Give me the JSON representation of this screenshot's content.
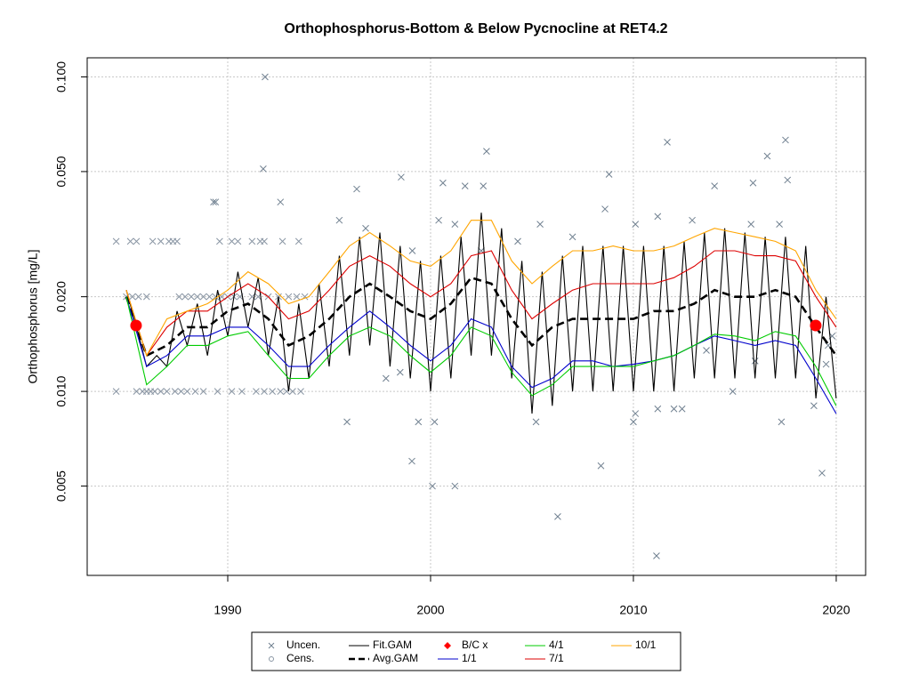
{
  "chart_data": {
    "type": "line",
    "title": "Orthophosphorus-Bottom & Below Pycnocline at RET4.2",
    "y_label": "Orthophosphorus [mg/L]",
    "xlim": [
      1983.07,
      2021.45
    ],
    "ylim": [
      0.0026,
      0.115
    ],
    "log_y": true,
    "grid": true,
    "legend": "bottom",
    "xticks": [
      1990,
      2000,
      2010,
      2020
    ],
    "yticks": [
      0.005,
      {
        "value": 0.01,
        "label": "0.010"
      },
      {
        "value": 0.02,
        "label": "0.020"
      },
      {
        "value": 0.05,
        "label": "0.050"
      },
      {
        "value": 0.1,
        "label": "0.100"
      }
    ],
    "series": [
      {
        "name": "Uncen.",
        "color": "#708090",
        "style": "x",
        "x": [
          1991.84,
          1991.75,
          1989.3,
          1989.4,
          1992.6,
          1996.36,
          1998.55,
          2000.61,
          2001.7,
          2002.76,
          2002.6,
          2008.8,
          2011.67,
          2014.0,
          2015.9,
          2017.5,
          2016.6,
          2017.6,
          1995.88,
          1999.08,
          1999.4,
          2000.09,
          2001.2,
          2000.2,
          2005.2,
          2006.27,
          2008.4,
          2010.0,
          2010.1,
          2011.14,
          2011.2,
          2012.0,
          2012.4,
          2017.3,
          2019.3,
          2018.9,
          2019.5,
          1995.5,
          1996.8,
          1999.1,
          2000.4,
          2001.2,
          2002.5,
          2004.3,
          2005.4,
          2007.0,
          2008.6,
          2010.1,
          2011.2,
          2012.9,
          2015.8,
          2017.2,
          1997.8,
          1998.5,
          2013.6,
          2016.0,
          2014.9,
          2019.8,
          2019.6
        ],
        "values": [
          0.1,
          0.051,
          0.04,
          0.04,
          0.04,
          0.044,
          0.048,
          0.046,
          0.045,
          0.058,
          0.045,
          0.049,
          0.062,
          0.045,
          0.046,
          0.063,
          0.056,
          0.047,
          0.008,
          0.006,
          0.008,
          0.005,
          0.005,
          0.008,
          0.008,
          0.004,
          0.0058,
          0.008,
          0.0085,
          0.003,
          0.0088,
          0.0088,
          0.0088,
          0.008,
          0.0055,
          0.009,
          0.0122,
          0.035,
          0.033,
          0.028,
          0.035,
          0.034,
          0.028,
          0.03,
          0.034,
          0.031,
          0.038,
          0.034,
          0.036,
          0.035,
          0.034,
          0.034,
          0.011,
          0.0115,
          0.0135,
          0.0125,
          0.01,
          0.015,
          0.014
        ]
      },
      {
        "name": "Cens.",
        "color": "#8a96a4",
        "style": "circle",
        "x": [
          1984.5,
          1985.2,
          1985.5,
          1986.3,
          1986.7,
          1987.1,
          1987.3,
          1987.5,
          1989.6,
          1990.2,
          1990.5,
          1991.2,
          1991.6,
          1991.8,
          1992.7,
          1993.5,
          1985.0,
          1985.3,
          1985.6,
          1986.0,
          1987.6,
          1987.9,
          1988.2,
          1988.5,
          1988.8,
          1989.1,
          1989.4,
          1989.7,
          1990.0,
          1990.3,
          1990.6,
          1991.2,
          1991.5,
          1992.0,
          1992.5,
          1993.0,
          1993.4,
          1993.8,
          1984.5,
          1985.5,
          1985.8,
          1986.0,
          1986.2,
          1986.4,
          1986.7,
          1987.0,
          1987.4,
          1987.7,
          1988.0,
          1988.4,
          1988.8,
          1989.5,
          1990.2,
          1990.7,
          1991.4,
          1991.8,
          1992.2,
          1992.6,
          1992.9,
          1993.2,
          1993.6
        ],
        "values": [
          0.03,
          0.03,
          0.03,
          0.03,
          0.03,
          0.03,
          0.03,
          0.03,
          0.03,
          0.03,
          0.03,
          0.03,
          0.03,
          0.03,
          0.03,
          0.03,
          0.02,
          0.02,
          0.02,
          0.02,
          0.02,
          0.02,
          0.02,
          0.02,
          0.02,
          0.02,
          0.02,
          0.02,
          0.02,
          0.02,
          0.02,
          0.02,
          0.02,
          0.02,
          0.02,
          0.02,
          0.02,
          0.02,
          0.01,
          0.01,
          0.01,
          0.01,
          0.01,
          0.01,
          0.01,
          0.01,
          0.01,
          0.01,
          0.01,
          0.01,
          0.01,
          0.01,
          0.01,
          0.01,
          0.01,
          0.01,
          0.01,
          0.01,
          0.01,
          0.01,
          0.01
        ]
      },
      {
        "name": "Fit.GAM",
        "color": "#000000",
        "style": "solid",
        "x": [
          1985,
          1985.5,
          1986,
          1986.5,
          1987,
          1987.5,
          1988,
          1988.5,
          1989,
          1989.5,
          1990,
          1990.5,
          1991,
          1991.5,
          1992,
          1992.5,
          1993,
          1993.5,
          1994,
          1994.5,
          1995,
          1995.5,
          1996,
          1996.5,
          1997,
          1997.5,
          1998,
          1998.5,
          1999,
          1999.5,
          2000,
          2000.5,
          2001,
          2001.5,
          2002,
          2002.5,
          2003,
          2003.5,
          2004,
          2004.5,
          2005,
          2005.5,
          2006,
          2006.5,
          2007,
          2007.5,
          2008,
          2008.5,
          2009,
          2009.5,
          2010,
          2010.5,
          2011,
          2011.5,
          2012,
          2012.5,
          2013,
          2013.5,
          2014,
          2014.5,
          2015,
          2015.5,
          2016,
          2016.5,
          2017,
          2017.5,
          2018,
          2018.5,
          2019,
          2019.5,
          2020
        ],
        "values": [
          0.021,
          0.016,
          0.012,
          0.013,
          0.012,
          0.018,
          0.014,
          0.019,
          0.013,
          0.021,
          0.015,
          0.024,
          0.016,
          0.023,
          0.013,
          0.02,
          0.01,
          0.019,
          0.011,
          0.022,
          0.012,
          0.027,
          0.013,
          0.031,
          0.014,
          0.032,
          0.012,
          0.029,
          0.011,
          0.026,
          0.01,
          0.027,
          0.011,
          0.031,
          0.013,
          0.037,
          0.013,
          0.033,
          0.011,
          0.026,
          0.0085,
          0.024,
          0.009,
          0.027,
          0.01,
          0.029,
          0.01,
          0.029,
          0.01,
          0.029,
          0.01,
          0.029,
          0.01,
          0.029,
          0.01,
          0.03,
          0.011,
          0.032,
          0.011,
          0.033,
          0.011,
          0.032,
          0.011,
          0.031,
          0.011,
          0.031,
          0.011,
          0.029,
          0.0095,
          0.02,
          0.0095
        ]
      },
      {
        "name": "Avg.GAM",
        "color": "#000000",
        "style": "dashed",
        "x": [
          1985,
          1986,
          1987,
          1988,
          1989,
          1990,
          1991,
          1992,
          1993,
          1994,
          1995,
          1996,
          1997,
          1998,
          1999,
          2000,
          2001,
          2002,
          2003,
          2004,
          2005,
          2006,
          2007,
          2008,
          2009,
          2010,
          2011,
          2012,
          2013,
          2014,
          2015,
          2016,
          2017,
          2018,
          2019,
          2020
        ],
        "values": [
          0.02,
          0.013,
          0.014,
          0.016,
          0.016,
          0.018,
          0.019,
          0.017,
          0.014,
          0.015,
          0.017,
          0.02,
          0.022,
          0.02,
          0.018,
          0.017,
          0.019,
          0.023,
          0.022,
          0.017,
          0.014,
          0.016,
          0.017,
          0.017,
          0.017,
          0.017,
          0.018,
          0.018,
          0.019,
          0.021,
          0.02,
          0.02,
          0.021,
          0.02,
          0.016,
          0.013
        ]
      },
      {
        "name": "B/C x",
        "color": "#ff0000",
        "style": "dot",
        "x": [
          1985.48,
          2018.99
        ],
        "values": [
          0.0162,
          0.0162
        ]
      },
      {
        "name": "1/1",
        "color": "#0000cc",
        "style": "solid",
        "x": [
          1985,
          1986,
          1987,
          1988,
          1989,
          1990,
          1991,
          1992,
          1993,
          1994,
          1995,
          1996,
          1997,
          1998,
          1999,
          2000,
          2001,
          2002,
          2003,
          2004,
          2005,
          2006,
          2007,
          2008,
          2009,
          2010,
          2011,
          2012,
          2013,
          2014,
          2015,
          2016,
          2017,
          2018,
          2019,
          2020
        ],
        "values": [
          0.02,
          0.012,
          0.013,
          0.015,
          0.015,
          0.016,
          0.016,
          0.014,
          0.012,
          0.012,
          0.014,
          0.016,
          0.018,
          0.016,
          0.014,
          0.0125,
          0.014,
          0.017,
          0.016,
          0.012,
          0.0103,
          0.011,
          0.0125,
          0.0125,
          0.012,
          0.0122,
          0.0125,
          0.013,
          0.014,
          0.015,
          0.0145,
          0.014,
          0.0145,
          0.014,
          0.011,
          0.0085
        ]
      },
      {
        "name": "4/1",
        "color": "#00cc00",
        "style": "solid",
        "x": [
          1985,
          1986,
          1987,
          1988,
          1989,
          1990,
          1991,
          1992,
          1993,
          1994,
          1995,
          1996,
          1997,
          1998,
          1999,
          2000,
          2001,
          2002,
          2003,
          2004,
          2005,
          2006,
          2007,
          2008,
          2009,
          2010,
          2011,
          2012,
          2013,
          2014,
          2015,
          2016,
          2017,
          2018,
          2019,
          2020
        ],
        "values": [
          0.02,
          0.0105,
          0.012,
          0.014,
          0.014,
          0.015,
          0.0155,
          0.013,
          0.011,
          0.011,
          0.013,
          0.015,
          0.016,
          0.015,
          0.013,
          0.0115,
          0.013,
          0.016,
          0.015,
          0.0115,
          0.0097,
          0.0105,
          0.012,
          0.012,
          0.012,
          0.012,
          0.0125,
          0.013,
          0.014,
          0.0152,
          0.015,
          0.0145,
          0.0155,
          0.015,
          0.012,
          0.009
        ]
      },
      {
        "name": "7/1",
        "color": "#dd0000",
        "style": "solid",
        "x": [
          1985,
          1986,
          1987,
          1988,
          1989,
          1990,
          1991,
          1992,
          1993,
          1994,
          1995,
          1996,
          1997,
          1998,
          1999,
          2000,
          2001,
          2002,
          2003,
          2004,
          2005,
          2006,
          2007,
          2008,
          2009,
          2010,
          2011,
          2012,
          2013,
          2014,
          2015,
          2016,
          2017,
          2018,
          2019,
          2020
        ],
        "values": [
          0.021,
          0.013,
          0.016,
          0.018,
          0.018,
          0.02,
          0.022,
          0.02,
          0.017,
          0.018,
          0.021,
          0.025,
          0.027,
          0.025,
          0.022,
          0.02,
          0.022,
          0.027,
          0.028,
          0.021,
          0.017,
          0.019,
          0.021,
          0.022,
          0.022,
          0.022,
          0.022,
          0.023,
          0.025,
          0.028,
          0.028,
          0.027,
          0.027,
          0.026,
          0.02,
          0.016
        ]
      },
      {
        "name": "10/1",
        "color": "#ffa500",
        "style": "solid",
        "x": [
          1985,
          1986,
          1987,
          1988,
          1989,
          1990,
          1991,
          1992,
          1993,
          1994,
          1995,
          1996,
          1997,
          1998,
          1999,
          2000,
          2001,
          2002,
          2003,
          2004,
          2005,
          2006,
          2007,
          2008,
          2009,
          2010,
          2011,
          2012,
          2013,
          2014,
          2015,
          2016,
          2017,
          2018,
          2019,
          2020
        ],
        "values": [
          0.021,
          0.013,
          0.017,
          0.018,
          0.019,
          0.021,
          0.024,
          0.022,
          0.019,
          0.02,
          0.024,
          0.029,
          0.032,
          0.029,
          0.026,
          0.025,
          0.028,
          0.035,
          0.035,
          0.026,
          0.022,
          0.025,
          0.028,
          0.028,
          0.029,
          0.028,
          0.028,
          0.029,
          0.031,
          0.033,
          0.032,
          0.031,
          0.03,
          0.028,
          0.021,
          0.017
        ]
      }
    ]
  }
}
